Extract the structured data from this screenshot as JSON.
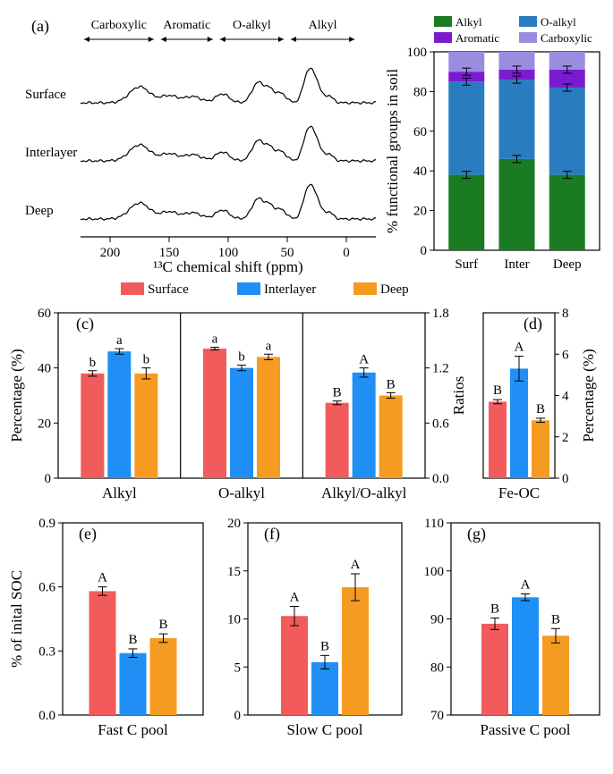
{
  "colors": {
    "alkyl": "#1b7b22",
    "oalkyl": "#2a7cc0",
    "aromatic": "#7a1bd1",
    "carboxylic": "#9a8de0",
    "surface": "#f25b5b",
    "interlayer": "#1f8ff5",
    "deep": "#f59b22",
    "text": "#000000",
    "bg": "#ffffff"
  },
  "panelA": {
    "label": "(a)",
    "xaxis": "¹³C chemical shift (ppm)",
    "xticks": [
      200,
      150,
      100,
      50,
      0
    ],
    "regions": [
      "Carboxylic",
      "Aromatic",
      "O-alkyl",
      "Alkyl"
    ],
    "rows": [
      "Surface",
      "Interlayer",
      "Deep"
    ]
  },
  "panelB": {
    "label": "(b)",
    "legend": [
      "Alkyl",
      "O-alkyl",
      "Aromatic",
      "Carboxylic"
    ],
    "yaxis": "% functional groups in soil",
    "yticks": [
      0,
      20,
      40,
      60,
      80,
      100
    ],
    "cats": [
      "Surf",
      "Inter",
      "Deep"
    ],
    "stacks": [
      {
        "alkyl": 38,
        "oalkyl": 47,
        "aromatic": 5,
        "carboxylic": 10
      },
      {
        "alkyl": 46,
        "oalkyl": 40,
        "aromatic": 5,
        "carboxylic": 9
      },
      {
        "alkyl": 38,
        "oalkyl": 44,
        "aromatic": 9,
        "carboxylic": 9
      }
    ]
  },
  "panelC": {
    "label": "(c)",
    "legend": [
      "Surface",
      "Interlayer",
      "Deep"
    ],
    "left_yaxis": "Percentage (%)",
    "right_yaxis": "Ratios",
    "left_ticks": [
      0,
      20,
      40,
      60
    ],
    "right_ticks": [
      0.0,
      0.6,
      1.2,
      1.8
    ],
    "groups": [
      {
        "name": "Alkyl",
        "vals": [
          38,
          46,
          38
        ],
        "err": [
          1,
          1,
          2
        ],
        "sig": [
          "b",
          "a",
          "b"
        ],
        "scale": "left"
      },
      {
        "name": "O-alkyl",
        "vals": [
          47,
          40,
          44
        ],
        "err": [
          0.5,
          1,
          1
        ],
        "sig": [
          "a",
          "b",
          "a"
        ],
        "scale": "left"
      },
      {
        "name": "Alkyl/O-alkyl",
        "vals": [
          0.82,
          1.15,
          0.9
        ],
        "err": [
          0.02,
          0.05,
          0.03
        ],
        "sig": [
          "B",
          "A",
          "B"
        ],
        "scale": "right"
      }
    ]
  },
  "panelD": {
    "label": "(d)",
    "yaxis": "Percentage (%)",
    "yticks": [
      0,
      2,
      4,
      6,
      8
    ],
    "name": "Fe-OC",
    "vals": [
      3.7,
      5.3,
      2.8
    ],
    "err": [
      0.1,
      0.6,
      0.1
    ],
    "sig": [
      "B",
      "A",
      "B"
    ]
  },
  "panelE": {
    "label": "(e)",
    "yaxis": "% of inital SOC",
    "yticks": [
      0.0,
      0.3,
      0.6,
      0.9
    ],
    "name": "Fast C pool",
    "vals": [
      0.58,
      0.29,
      0.36
    ],
    "err": [
      0.02,
      0.02,
      0.02
    ],
    "sig": [
      "A",
      "B",
      "B"
    ]
  },
  "panelF": {
    "label": "(f)",
    "yticks": [
      0,
      5,
      10,
      15,
      20
    ],
    "name": "Slow C pool",
    "vals": [
      10.3,
      5.5,
      13.3
    ],
    "err": [
      1.0,
      0.7,
      1.4
    ],
    "sig": [
      "A",
      "B",
      "A"
    ]
  },
  "panelG": {
    "label": "(g)",
    "yticks": [
      70,
      80,
      90,
      100,
      110
    ],
    "name": "Passive C pool",
    "vals": [
      89,
      94.5,
      86.5
    ],
    "err": [
      1.2,
      0.7,
      1.5
    ],
    "sig": [
      "B",
      "A",
      "B"
    ]
  },
  "fontsize": {
    "label": 18,
    "axis": 17,
    "tick": 15,
    "sig": 15,
    "legend": 15
  }
}
